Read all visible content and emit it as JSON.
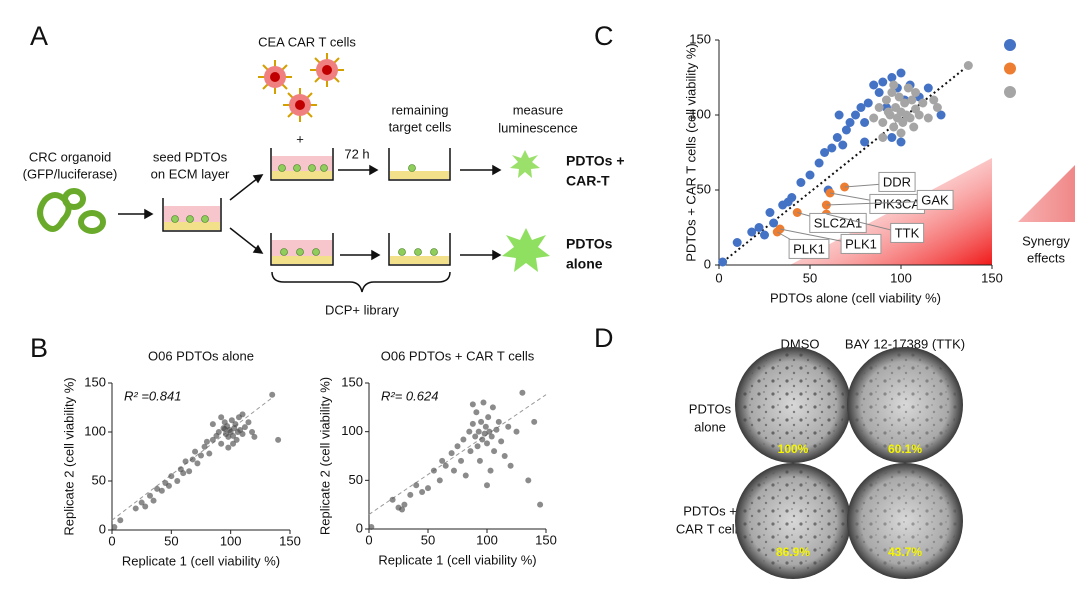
{
  "panel_labels": {
    "a": "A",
    "b": "B",
    "c": "C",
    "d": "D"
  },
  "diagram": {
    "car_t_label": "CEA CAR T cells",
    "organoid_label": [
      "CRC organoid",
      "(GFP/luciferase)"
    ],
    "seed_label": [
      "seed PDTOs",
      "on ECM layer"
    ],
    "plus": "+",
    "incubation": "72 h",
    "remaining_label": [
      "remaining",
      "target cells"
    ],
    "measure_label": [
      "measure",
      "luminescence"
    ],
    "condition_car_t": [
      "PDTOs +",
      "CAR-T"
    ],
    "condition_alone": [
      "PDTOs",
      "alone"
    ],
    "library": "DCP+ library"
  },
  "chart_data": [
    {
      "type": "scatter",
      "title": "O06 PDTOs alone",
      "annotation": "R² =0.841",
      "xlabel": "Replicate 1 (cell viability %)",
      "ylabel": "Replicate 2 (cell viability %)",
      "xlim": [
        0,
        150
      ],
      "ylim": [
        0,
        150
      ],
      "xticks": [
        0,
        50,
        100,
        150
      ],
      "yticks": [
        0,
        50,
        100,
        150
      ],
      "series": [
        {
          "color": "#4d4d4d",
          "x": [
            2,
            7,
            20,
            25,
            28,
            32,
            35,
            38,
            42,
            45,
            48,
            50,
            55,
            58,
            60,
            62,
            65,
            68,
            70,
            72,
            75,
            78,
            80,
            82,
            85,
            88,
            90,
            92,
            94,
            95,
            96,
            97,
            98,
            99,
            100,
            101,
            102,
            103,
            104,
            105,
            106,
            107,
            108,
            110,
            112,
            115,
            118,
            120,
            135,
            140,
            85,
            92,
            110,
            98,
            102,
            95
          ],
          "values": [
            3,
            10,
            22,
            28,
            24,
            35,
            30,
            42,
            40,
            48,
            45,
            55,
            50,
            62,
            58,
            70,
            60,
            72,
            80,
            68,
            76,
            85,
            90,
            78,
            92,
            96,
            100,
            88,
            104,
            110,
            98,
            106,
            95,
            102,
            100,
            112,
            96,
            104,
            108,
            92,
            100,
            115,
            102,
            98,
            105,
            110,
            100,
            95,
            138,
            92,
            108,
            115,
            118,
            84,
            88,
            103
          ]
        }
      ],
      "trendline": {
        "x": [
          0,
          135
        ],
        "values": [
          10,
          135
        ]
      }
    },
    {
      "type": "scatter",
      "title": "O06 PDTOs + CAR T cells",
      "annotation": "R²= 0.624",
      "xlabel": "Replicate 1 (cell viability %)",
      "ylabel": "Replicate 2 (cell viability %)",
      "xlim": [
        0,
        150
      ],
      "ylim": [
        0,
        150
      ],
      "xticks": [
        0,
        50,
        100,
        150
      ],
      "yticks": [
        0,
        50,
        100,
        150
      ],
      "series": [
        {
          "color": "#4d4d4d",
          "x": [
            2,
            20,
            25,
            28,
            30,
            35,
            40,
            45,
            50,
            55,
            60,
            62,
            65,
            70,
            72,
            75,
            78,
            80,
            82,
            85,
            86,
            88,
            90,
            91,
            92,
            93,
            94,
            95,
            96,
            97,
            98,
            99,
            100,
            101,
            102,
            103,
            104,
            105,
            106,
            108,
            110,
            112,
            115,
            118,
            120,
            125,
            130,
            135,
            140,
            145,
            100,
            88
          ],
          "values": [
            2,
            30,
            22,
            20,
            25,
            35,
            45,
            38,
            42,
            60,
            50,
            70,
            65,
            78,
            60,
            85,
            70,
            92,
            55,
            100,
            80,
            108,
            95,
            120,
            85,
            100,
            70,
            110,
            92,
            130,
            98,
            105,
            88,
            115,
            100,
            60,
            95,
            125,
            80,
            102,
            110,
            90,
            75,
            105,
            65,
            100,
            140,
            50,
            110,
            25,
            45,
            128
          ]
        }
      ],
      "trendline": {
        "x": [
          0,
          150
        ],
        "values": [
          15,
          138
        ]
      }
    },
    {
      "type": "scatter",
      "xlabel": "PDTOs alone (cell viability %)",
      "ylabel": "PDTOs + CAR T cells  (cell viability %)",
      "xlim": [
        0,
        150
      ],
      "ylim": [
        0,
        150
      ],
      "xticks": [
        0,
        50,
        100,
        150
      ],
      "yticks": [
        0,
        50,
        100,
        150
      ],
      "series": [
        {
          "color": "#4472c4",
          "x": [
            2,
            10,
            18,
            22,
            25,
            28,
            30,
            35,
            38,
            40,
            45,
            50,
            55,
            58,
            60,
            62,
            65,
            68,
            70,
            72,
            75,
            78,
            80,
            82,
            85,
            88,
            90,
            92,
            95,
            98,
            100,
            102,
            105,
            110,
            115,
            122,
            80,
            66,
            95,
            100
          ],
          "values": [
            2,
            15,
            22,
            25,
            20,
            35,
            28,
            40,
            42,
            45,
            55,
            60,
            68,
            75,
            50,
            78,
            85,
            80,
            90,
            95,
            100,
            105,
            95,
            108,
            120,
            115,
            122,
            105,
            125,
            118,
            128,
            110,
            120,
            112,
            118,
            100,
            82,
            100,
            85,
            82
          ]
        },
        {
          "color": "#ed7d31",
          "x": [
            69,
            61,
            59,
            43,
            59,
            33.5,
            32
          ],
          "values": [
            52,
            48,
            40,
            35,
            34,
            24,
            22
          ],
          "labels": [
            "DDR",
            "PIK3CA",
            "GAK",
            "SLC2A1",
            "TTK",
            "PLK1",
            "PLK1"
          ]
        },
        {
          "color": "#a5a5a5",
          "x": [
            85,
            88,
            90,
            92,
            94,
            95,
            96,
            97,
            98,
            99,
            100,
            101,
            102,
            103,
            104,
            105,
            106,
            107,
            108,
            110,
            112,
            115,
            118,
            120,
            96,
            100,
            90,
            137,
            108,
            93
          ],
          "values": [
            98,
            105,
            95,
            110,
            100,
            115,
            92,
            105,
            98,
            112,
            102,
            95,
            108,
            100,
            118,
            98,
            110,
            92,
            104,
            100,
            108,
            98,
            110,
            105,
            120,
            88,
            85,
            133,
            115,
            102
          ]
        }
      ],
      "trendline": {
        "x": [
          0,
          137
        ],
        "values": [
          0,
          133
        ]
      },
      "synergy_label": [
        "Synergy",
        "effects"
      ]
    }
  ],
  "images": {
    "columns": [
      "DMSO",
      "BAY 12-17389 (TTK)"
    ],
    "rows": [
      [
        "PDTOs",
        "alone"
      ],
      [
        "PDTOs +",
        "CAR T cells"
      ]
    ],
    "cells": [
      [
        "100%",
        "60.1%"
      ],
      [
        "86.9%",
        "43.7%"
      ]
    ]
  }
}
